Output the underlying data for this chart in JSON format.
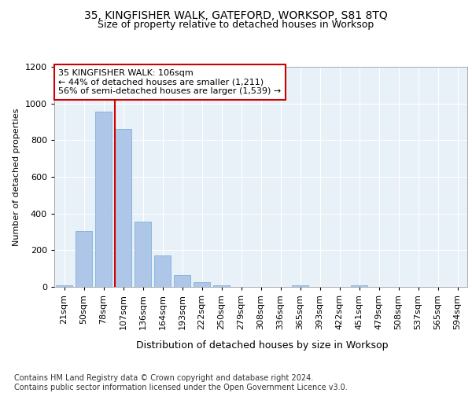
{
  "title1": "35, KINGFISHER WALK, GATEFORD, WORKSOP, S81 8TQ",
  "title2": "Size of property relative to detached houses in Worksop",
  "xlabel": "Distribution of detached houses by size in Worksop",
  "ylabel": "Number of detached properties",
  "categories": [
    "21sqm",
    "50sqm",
    "78sqm",
    "107sqm",
    "136sqm",
    "164sqm",
    "193sqm",
    "222sqm",
    "250sqm",
    "279sqm",
    "308sqm",
    "336sqm",
    "365sqm",
    "393sqm",
    "422sqm",
    "451sqm",
    "479sqm",
    "508sqm",
    "537sqm",
    "565sqm",
    "594sqm"
  ],
  "values": [
    10,
    305,
    955,
    860,
    355,
    170,
    65,
    25,
    10,
    0,
    0,
    0,
    10,
    0,
    0,
    10,
    0,
    0,
    0,
    0,
    0
  ],
  "bar_color": "#aec6e8",
  "bar_edge_color": "#6fa8d6",
  "vline_x_index": 3,
  "vline_color": "#cc0000",
  "annotation_text": "35 KINGFISHER WALK: 106sqm\n← 44% of detached houses are smaller (1,211)\n56% of semi-detached houses are larger (1,539) →",
  "annotation_box_color": "#ffffff",
  "annotation_box_edge_color": "#cc0000",
  "ylim": [
    0,
    1200
  ],
  "yticks": [
    0,
    200,
    400,
    600,
    800,
    1000,
    1200
  ],
  "bg_color": "#e8f0f8",
  "fig_bg_color": "#ffffff",
  "footer": "Contains HM Land Registry data © Crown copyright and database right 2024.\nContains public sector information licensed under the Open Government Licence v3.0.",
  "title1_fontsize": 10,
  "title2_fontsize": 9,
  "xlabel_fontsize": 9,
  "ylabel_fontsize": 8,
  "tick_fontsize": 8,
  "annotation_fontsize": 8,
  "footer_fontsize": 7
}
